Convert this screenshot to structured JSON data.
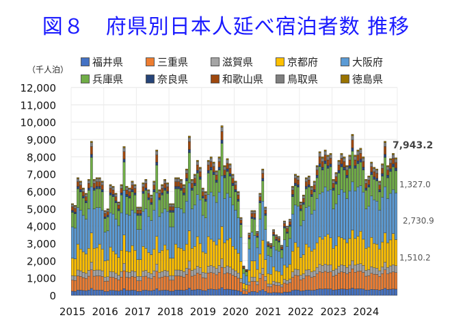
{
  "title": "図８　府県別日本人延べ宿泊者数 推移",
  "chart_data": {
    "type": "bar",
    "stacked": true,
    "title": "図８　府県別日本人延べ宿泊者数 推移",
    "ylabel": "（千人泊）",
    "xlabel": "",
    "ylim": [
      0,
      12000
    ],
    "yticks": [
      0,
      1000,
      2000,
      3000,
      4000,
      5000,
      6000,
      7000,
      8000,
      9000,
      10000,
      11000,
      12000
    ],
    "ytick_labels": [
      "0",
      "1,000",
      "2,000",
      "3,000",
      "4,000",
      "5,000",
      "6,000",
      "7,000",
      "8,000",
      "9,000",
      "10,000",
      "11,000",
      "12,000"
    ],
    "xtick_labels": [
      "2015",
      "2016",
      "2017",
      "2018",
      "2019",
      "2020",
      "2021",
      "2022",
      "2023",
      "2024"
    ],
    "grid": true,
    "legend_position": "top",
    "frequency": "monthly",
    "period": "2015-01 to 2024-12",
    "series_names": [
      "福井県",
      "三重県",
      "滋賀県",
      "京都府",
      "大阪府",
      "兵庫県",
      "奈良県",
      "和歌山県",
      "鳥取県",
      "徳島県"
    ],
    "series_colors": [
      "#4472c4",
      "#ed7d31",
      "#a5a5a5",
      "#ffc000",
      "#5b9bd5",
      "#70ad47",
      "#264478",
      "#9e480e",
      "#7f7f7f",
      "#997300"
    ],
    "totals": [
      5300,
      5200,
      6800,
      6600,
      6200,
      5900,
      6700,
      8900,
      6700,
      6800,
      6800,
      6600,
      4900,
      5000,
      6400,
      6300,
      5900,
      5400,
      6400,
      8600,
      6300,
      6200,
      6600,
      6400,
      5100,
      5100,
      6500,
      6700,
      6100,
      5800,
      6600,
      8400,
      6100,
      6400,
      6700,
      6500,
      5300,
      5300,
      6800,
      6800,
      6700,
      6400,
      7300,
      9200,
      6700,
      7000,
      7800,
      7400,
      6200,
      6000,
      7800,
      8000,
      7700,
      7200,
      8000,
      9800,
      7500,
      7900,
      7600,
      7000,
      6600,
      6000,
      4500,
      1700,
      1500,
      3600,
      4900,
      4900,
      3700,
      5900,
      7300,
      5100,
      3100,
      3000,
      3800,
      3500,
      3400,
      2900,
      4300,
      4000,
      4400,
      6300,
      7000,
      6900,
      5400,
      5800,
      6800,
      6900,
      6300,
      6600,
      7500,
      8300,
      8000,
      8400,
      8100,
      8200,
      6700,
      7100,
      7800,
      8200,
      8000,
      7500,
      8100,
      9300,
      8100,
      8400,
      8500,
      8000,
      6700,
      6900,
      7700,
      7400,
      7300,
      6600,
      7600,
      8900,
      7500,
      7900,
      8200,
      7943.2
    ],
    "annotations": {
      "latest_total": "7,943.2",
      "latest_hyogo": "1,327.0",
      "latest_osaka": "2,730.9",
      "latest_kyoto": "1,510.2"
    }
  },
  "legend": [
    {
      "label": "福井県",
      "color": "#4472c4"
    },
    {
      "label": "三重県",
      "color": "#ed7d31"
    },
    {
      "label": "滋賀県",
      "color": "#a5a5a5"
    },
    {
      "label": "京都府",
      "color": "#ffc000"
    },
    {
      "label": "大阪府",
      "color": "#5b9bd5"
    },
    {
      "label": "兵庫県",
      "color": "#70ad47"
    },
    {
      "label": "奈良県",
      "color": "#264478"
    },
    {
      "label": "和歌山県",
      "color": "#9e480e"
    },
    {
      "label": "鳥取県",
      "color": "#7f7f7f"
    },
    {
      "label": "徳島県",
      "color": "#997300"
    }
  ]
}
